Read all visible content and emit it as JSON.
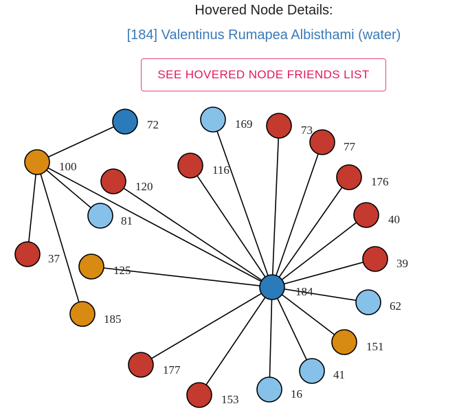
{
  "header": {
    "title": "Hovered Node Details:",
    "subtitle": "[184] Valentinus Rumapea Albisthami (water)",
    "friends_button_label": "SEE HOVERED NODE FRIENDS LIST"
  },
  "colors": {
    "dark_blue": "#2b7bba",
    "light_blue": "#86c1ea",
    "red": "#c43a2e",
    "orange": "#d98a12",
    "edge": "#000000"
  },
  "graph": {
    "nodes": [
      {
        "id": "184",
        "label": "184",
        "color": "dark_blue"
      },
      {
        "id": "100",
        "label": "100",
        "color": "orange"
      },
      {
        "id": "72",
        "label": "72",
        "color": "dark_blue"
      },
      {
        "id": "169",
        "label": "169",
        "color": "light_blue"
      },
      {
        "id": "73",
        "label": "73",
        "color": "red"
      },
      {
        "id": "77",
        "label": "77",
        "color": "red"
      },
      {
        "id": "116",
        "label": "116",
        "color": "red"
      },
      {
        "id": "120",
        "label": "120",
        "color": "red"
      },
      {
        "id": "176",
        "label": "176",
        "color": "red"
      },
      {
        "id": "81",
        "label": "81",
        "color": "light_blue"
      },
      {
        "id": "40",
        "label": "40",
        "color": "red"
      },
      {
        "id": "37",
        "label": "37",
        "color": "red"
      },
      {
        "id": "125",
        "label": "125",
        "color": "orange"
      },
      {
        "id": "39",
        "label": "39",
        "color": "red"
      },
      {
        "id": "62",
        "label": "62",
        "color": "light_blue"
      },
      {
        "id": "185",
        "label": "185",
        "color": "orange"
      },
      {
        "id": "151",
        "label": "151",
        "color": "orange"
      },
      {
        "id": "177",
        "label": "177",
        "color": "red"
      },
      {
        "id": "41",
        "label": "41",
        "color": "light_blue"
      },
      {
        "id": "16",
        "label": "16",
        "color": "light_blue"
      },
      {
        "id": "153",
        "label": "153",
        "color": "red"
      }
    ],
    "edges": [
      [
        "100",
        "72"
      ],
      [
        "100",
        "81"
      ],
      [
        "100",
        "37"
      ],
      [
        "100",
        "185"
      ],
      [
        "100",
        "184"
      ],
      [
        "184",
        "169"
      ],
      [
        "184",
        "73"
      ],
      [
        "184",
        "77"
      ],
      [
        "184",
        "116"
      ],
      [
        "184",
        "120"
      ],
      [
        "184",
        "176"
      ],
      [
        "184",
        "40"
      ],
      [
        "184",
        "39"
      ],
      [
        "184",
        "62"
      ],
      [
        "184",
        "151"
      ],
      [
        "184",
        "41"
      ],
      [
        "184",
        "16"
      ],
      [
        "184",
        "153"
      ],
      [
        "184",
        "177"
      ],
      [
        "184",
        "125"
      ]
    ]
  }
}
